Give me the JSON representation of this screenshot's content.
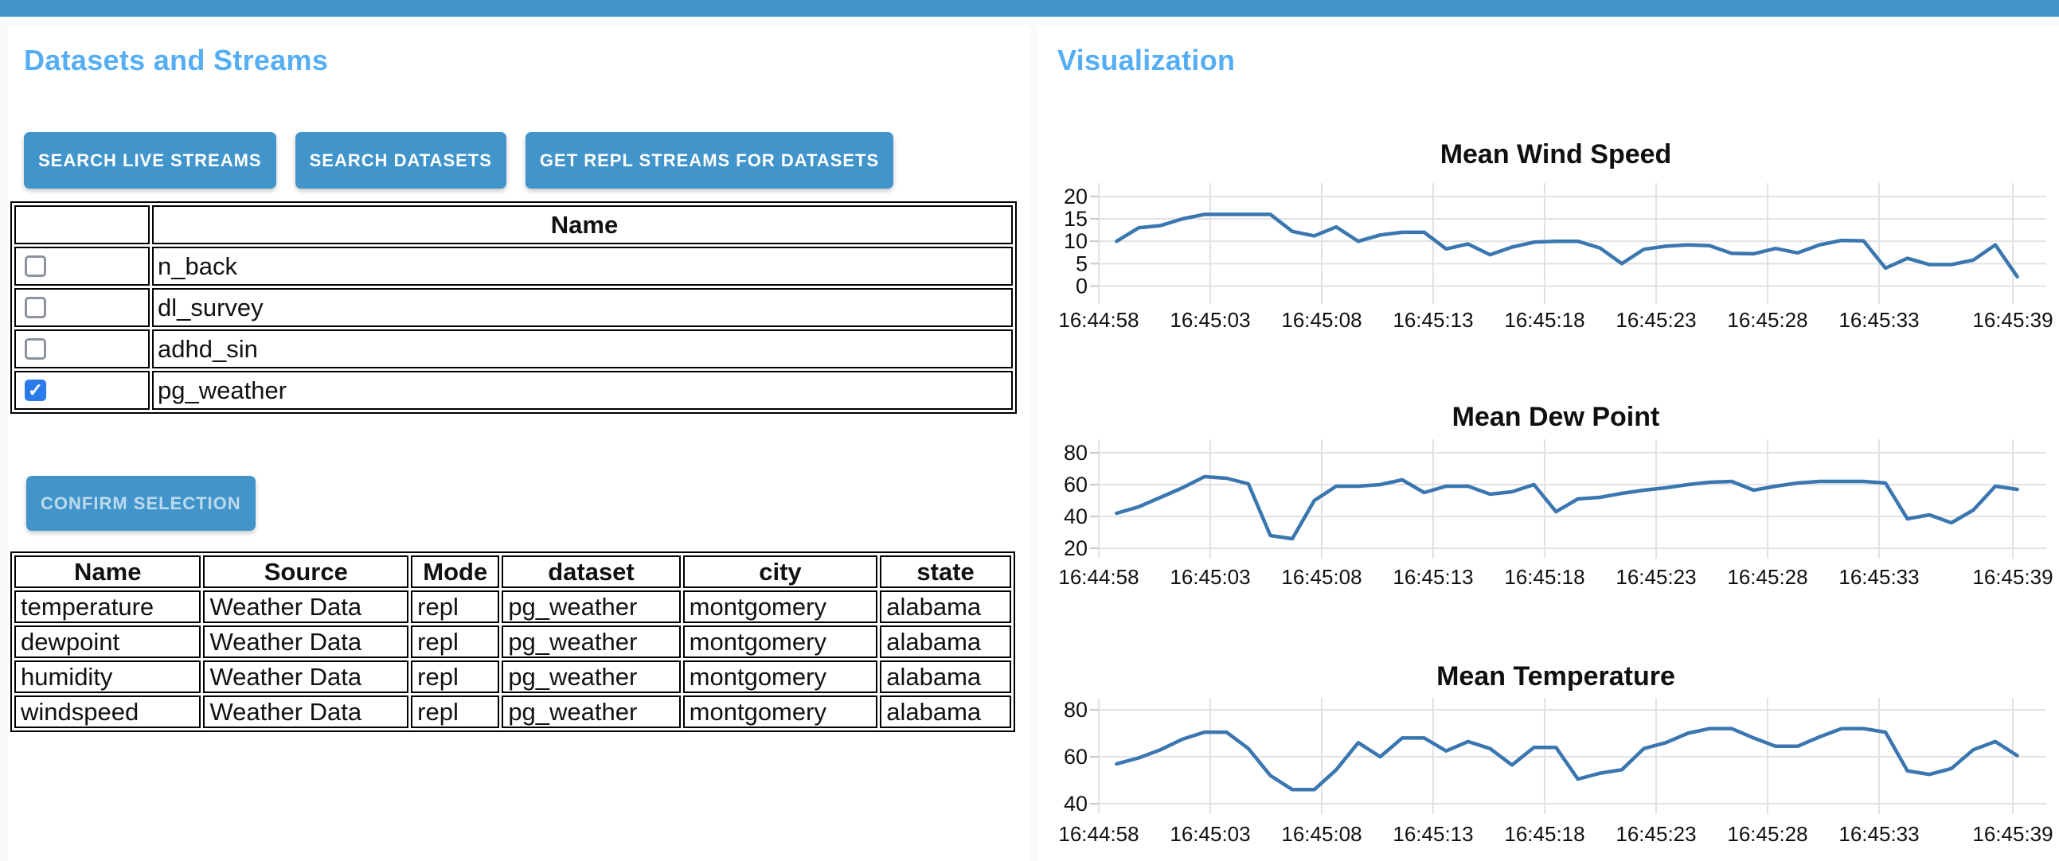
{
  "colors": {
    "top_bar": "#4295cb",
    "accent": "#4295cb",
    "heading": "#55aef3",
    "line": "#3a76b0",
    "checkbox_checked": "#2b7bec",
    "grid": "#e2e2e2",
    "tick": "#c9c9c9"
  },
  "left_panel": {
    "title": "Datasets and Streams",
    "buttons": [
      {
        "label": "SEARCH LIVE STREAMS"
      },
      {
        "label": "SEARCH DATASETS"
      },
      {
        "label": "GET REPL STREAMS FOR DATASETS"
      }
    ],
    "datasets_table": {
      "columns": [
        "",
        "Name"
      ],
      "rows": [
        {
          "checked": false,
          "name": "n_back"
        },
        {
          "checked": false,
          "name": "dl_survey"
        },
        {
          "checked": false,
          "name": "adhd_sin"
        },
        {
          "checked": true,
          "name": "pg_weather"
        }
      ]
    },
    "confirm_button": {
      "label": "CONFIRM SELECTION",
      "enabled": false
    },
    "streams_table": {
      "columns": [
        "Name",
        "Source",
        "Mode",
        "dataset",
        "city",
        "state"
      ],
      "rows": [
        [
          "temperature",
          "Weather Data",
          "repl",
          "pg_weather",
          "montgomery",
          "alabama"
        ],
        [
          "dewpoint",
          "Weather Data",
          "repl",
          "pg_weather",
          "montgomery",
          "alabama"
        ],
        [
          "humidity",
          "Weather Data",
          "repl",
          "pg_weather",
          "montgomery",
          "alabama"
        ],
        [
          "windspeed",
          "Weather Data",
          "repl",
          "pg_weather",
          "montgomery",
          "alabama"
        ]
      ]
    }
  },
  "right_panel": {
    "title": "Visualization"
  },
  "chart_data": [
    {
      "type": "line",
      "title": "Mean Wind Speed",
      "yticks": [
        0,
        5,
        10,
        15,
        20
      ],
      "ylim": [
        -4,
        23
      ],
      "xtick_labels": [
        "16:44:58",
        "16:45:03",
        "16:45:08",
        "16:45:13",
        "16:45:18",
        "16:45:23",
        "16:45:28",
        "16:45:33",
        "16:45:39"
      ],
      "xtick_seconds": [
        0,
        5,
        10,
        15,
        20,
        25,
        30,
        35,
        41
      ],
      "x_span_seconds": [
        0.8,
        41.2
      ],
      "grid": true,
      "legend": "none",
      "values": [
        10,
        13,
        13.5,
        15,
        16,
        16,
        16,
        16,
        12.2,
        11.2,
        13.2,
        10,
        11.4,
        12,
        12,
        8.3,
        9.4,
        7,
        8.7,
        9.8,
        10,
        10,
        8.5,
        5,
        8.2,
        8.9,
        9.2,
        9,
        7.3,
        7.2,
        8.4,
        7.4,
        9.2,
        10.2,
        10.1,
        4,
        6.2,
        4.8,
        4.8,
        5.8,
        9.2,
        2.1
      ]
    },
    {
      "type": "line",
      "title": "Mean Dew Point",
      "yticks": [
        20,
        40,
        60,
        80
      ],
      "ylim": [
        13.5,
        88.5
      ],
      "xtick_labels": [
        "16:44:58",
        "16:45:03",
        "16:45:08",
        "16:45:13",
        "16:45:18",
        "16:45:23",
        "16:45:28",
        "16:45:33",
        "16:45:39"
      ],
      "xtick_seconds": [
        0,
        5,
        10,
        15,
        20,
        25,
        30,
        35,
        41
      ],
      "x_span_seconds": [
        0.8,
        41.2
      ],
      "grid": true,
      "legend": "none",
      "values": [
        42,
        46,
        52,
        58,
        65,
        64,
        60.5,
        28,
        26,
        50,
        59,
        59,
        60,
        63,
        55,
        59,
        59,
        54,
        55.5,
        60,
        43,
        51,
        52,
        54.5,
        56.5,
        58,
        60,
        61.5,
        62,
        56.5,
        59,
        61,
        62,
        62,
        62,
        61,
        38.5,
        41,
        36,
        44,
        59,
        57
      ]
    },
    {
      "type": "line",
      "title": "Mean Temperature",
      "yticks": [
        40,
        60,
        80
      ],
      "ylim": [
        35.6,
        85.1
      ],
      "xtick_labels": [
        "16:44:58",
        "16:45:03",
        "16:45:08",
        "16:45:13",
        "16:45:18",
        "16:45:23",
        "16:45:28",
        "16:45:33",
        "16:45:39"
      ],
      "xtick_seconds": [
        0,
        5,
        10,
        15,
        20,
        25,
        30,
        35,
        41
      ],
      "x_span_seconds": [
        0.8,
        41.2
      ],
      "grid": true,
      "legend": "none",
      "values": [
        57,
        59.5,
        63,
        67.5,
        70.5,
        70.5,
        63.5,
        52,
        46,
        46,
        54.5,
        66,
        60,
        68,
        68,
        62.5,
        66.5,
        63.5,
        56.5,
        64,
        64,
        50.5,
        53,
        54.5,
        63.5,
        66,
        70,
        72,
        72,
        68,
        64.5,
        64.5,
        68.5,
        72,
        72,
        70.5,
        54,
        52.5,
        55,
        63,
        66.5,
        60.5
      ]
    }
  ]
}
